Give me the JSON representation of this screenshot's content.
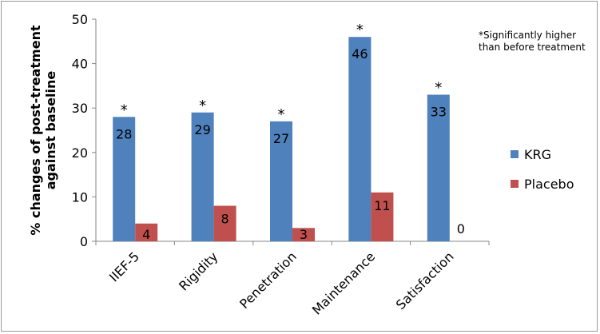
{
  "chart_data": {
    "type": "bar",
    "categories": [
      "IIEF-5",
      "Rigidity",
      "Penetration",
      "Maintenance",
      "Satisfaction"
    ],
    "series": [
      {
        "name": "KRG",
        "values": [
          28,
          29,
          27,
          46,
          33
        ],
        "color": "#4F81BD"
      },
      {
        "name": "Placebo",
        "values": [
          4,
          8,
          3,
          11,
          0
        ],
        "color": "#C0504D"
      }
    ],
    "significance_markers": [
      "*",
      "*",
      "*",
      "*",
      "*"
    ],
    "ylabel_lines": [
      "% changes of post-treatment",
      "against baseline"
    ],
    "ylim": [
      0,
      50
    ],
    "yticks": [
      0,
      10,
      20,
      30,
      40,
      50
    ],
    "annotation_lines": [
      "*Significantly higher",
      "than before treatment"
    ],
    "legend_position": "right",
    "grid": false
  }
}
